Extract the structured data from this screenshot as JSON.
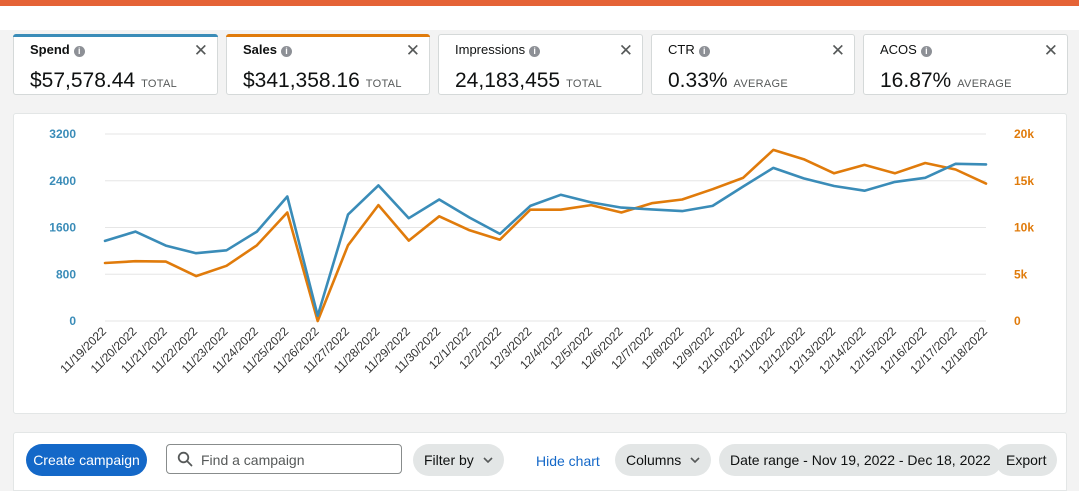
{
  "colors": {
    "spend": "#3a8cb8",
    "sales": "#e07b0b",
    "accent_top": "#e56336",
    "primary": "#1468c8"
  },
  "metrics": [
    {
      "label": "Spend",
      "value": "$57,578.44",
      "sub": "TOTAL",
      "selected": true,
      "accent": "#3a8cb8"
    },
    {
      "label": "Sales",
      "value": "$341,358.16",
      "sub": "TOTAL",
      "selected": true,
      "accent": "#e07b0b"
    },
    {
      "label": "Impressions",
      "value": "24,183,455",
      "sub": "TOTAL",
      "selected": false,
      "accent": ""
    },
    {
      "label": "CTR",
      "value": "0.33%",
      "sub": "AVERAGE",
      "selected": false,
      "accent": ""
    },
    {
      "label": "ACOS",
      "value": "16.87%",
      "sub": "AVERAGE",
      "selected": false,
      "accent": ""
    }
  ],
  "metric_info_glyph": "i",
  "metric_close_glyph": "✕",
  "chart_data": {
    "type": "line",
    "categories": [
      "11/19/2022",
      "11/20/2022",
      "11/21/2022",
      "11/22/2022",
      "11/23/2022",
      "11/24/2022",
      "11/25/2022",
      "11/26/2022",
      "11/27/2022",
      "11/28/2022",
      "11/29/2022",
      "11/30/2022",
      "12/1/2022",
      "12/2/2022",
      "12/3/2022",
      "12/4/2022",
      "12/5/2022",
      "12/6/2022",
      "12/7/2022",
      "12/8/2022",
      "12/9/2022",
      "12/10/2022",
      "12/11/2022",
      "12/12/2022",
      "12/13/2022",
      "12/14/2022",
      "12/15/2022",
      "12/16/2022",
      "12/17/2022",
      "12/18/2022"
    ],
    "series": [
      {
        "name": "Spend",
        "axis": "left",
        "color": "#3a8cb8",
        "values": [
          1370,
          1530,
          1290,
          1160,
          1210,
          1530,
          2130,
          90,
          1820,
          2320,
          1760,
          2080,
          1770,
          1490,
          1970,
          2160,
          2030,
          1940,
          1910,
          1880,
          1970,
          2300,
          2620,
          2440,
          2310,
          2230,
          2380,
          2450,
          2690,
          2680
        ]
      },
      {
        "name": "Sales",
        "axis": "right",
        "color": "#e07b0b",
        "values": [
          6200,
          6400,
          6350,
          4800,
          5900,
          8100,
          11600,
          0,
          8100,
          12400,
          8600,
          11200,
          9700,
          8700,
          11900,
          11900,
          12400,
          11600,
          12600,
          13000,
          14100,
          15300,
          18300,
          17300,
          15800,
          16700,
          15800,
          16900,
          16200,
          14700
        ]
      }
    ],
    "y_left": {
      "ticks": [
        "3200",
        "2400",
        "1600",
        "800",
        "0"
      ],
      "min": 0,
      "max": 3200
    },
    "y_right": {
      "ticks": [
        "20k",
        "15k",
        "10k",
        "5k",
        "0"
      ],
      "min": 0,
      "max": 20000
    },
    "grid": true
  },
  "toolbar": {
    "create_label": "Create campaign",
    "search_placeholder": "Find a campaign",
    "filter_label": "Filter by",
    "hide_chart_label": "Hide chart",
    "columns_label": "Columns",
    "date_range_label": "Date range - Nov 19, 2022 - Dec 18, 2022",
    "export_label": "Export"
  }
}
